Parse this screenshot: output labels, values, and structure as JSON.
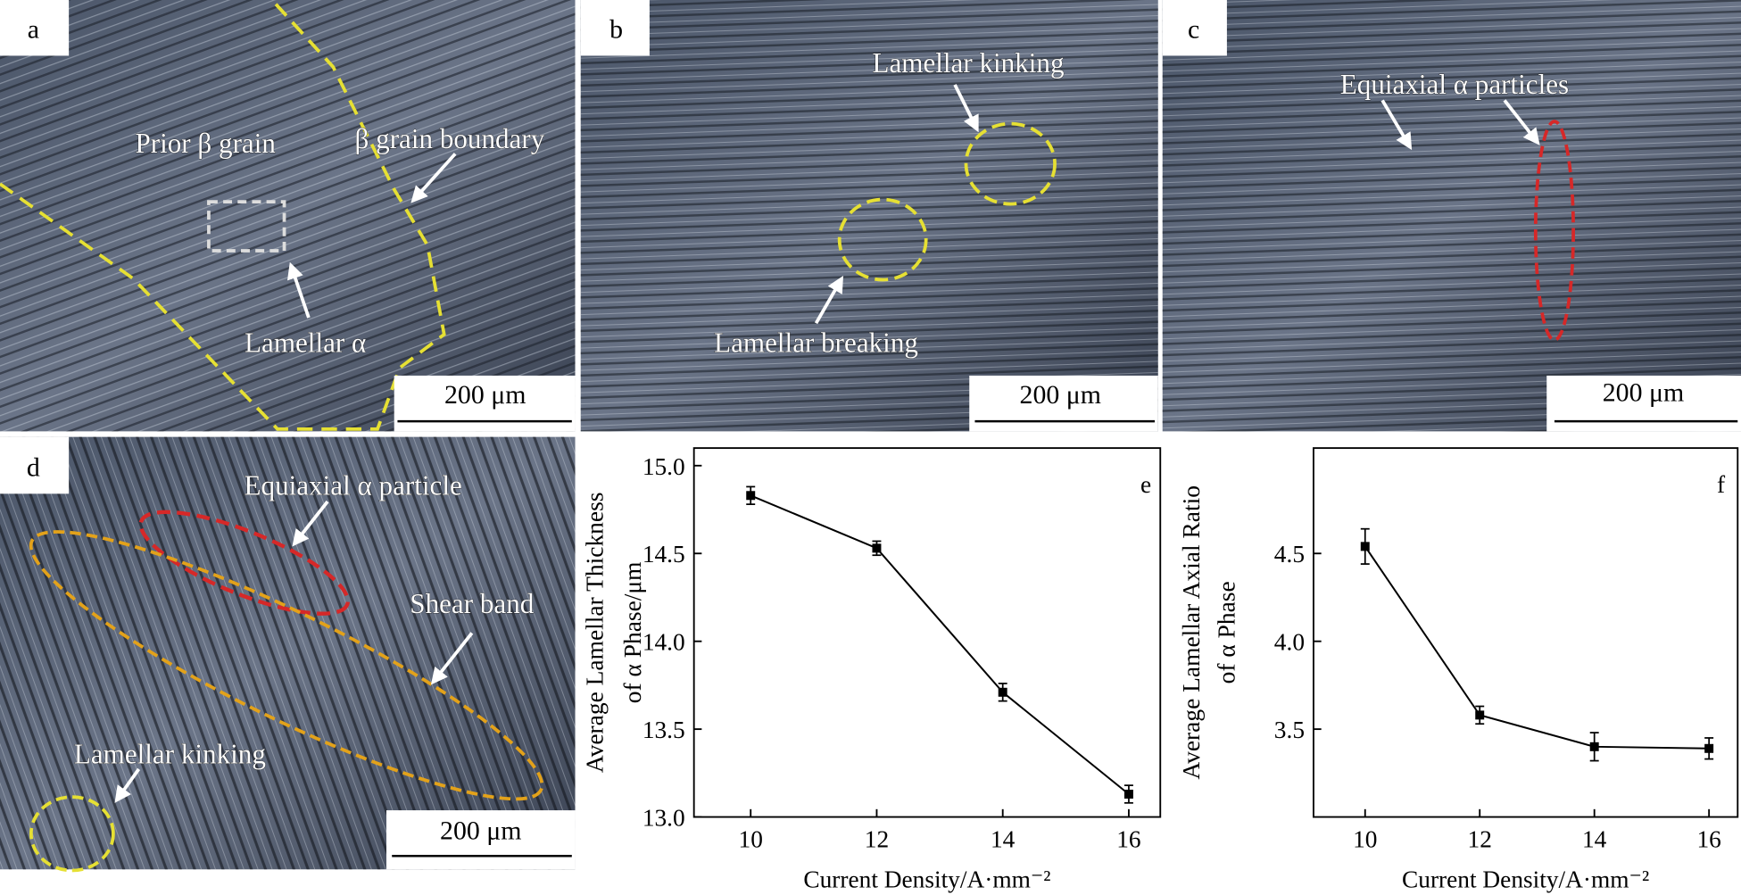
{
  "micrographs": [
    {
      "label": "a",
      "annotations": [
        "Prior β grain",
        "β grain boundary",
        "Lamellar α"
      ],
      "scale_bar": "200 μm"
    },
    {
      "label": "b",
      "annotations": [
        "Lamellar kinking",
        "Lamellar breaking"
      ],
      "scale_bar": "200 μm"
    },
    {
      "label": "c",
      "annotations": [
        "Equiaxial α particles"
      ],
      "scale_bar": "200 μm"
    },
    {
      "label": "d",
      "annotations": [
        "Equiaxial α particle",
        "Shear band",
        "Lamellar kinking"
      ],
      "scale_bar": "200 μm"
    }
  ],
  "chart_data": [
    {
      "type": "line",
      "panel_label": "e",
      "x_label": "Current Density/A·mm⁻²",
      "y_label": [
        "Average Lamellar Thickness",
        "of α Phase/μm"
      ],
      "x": [
        10,
        12,
        14,
        16
      ],
      "series": [
        {
          "color": "#000000",
          "values": [
            14.83,
            14.53,
            13.71,
            13.13
          ],
          "errors": [
            0.05,
            0.04,
            0.05,
            0.05
          ]
        }
      ],
      "xlim": [
        9.1,
        16.5
      ],
      "xticks": [
        10,
        12,
        14,
        16
      ],
      "ylim": [
        13.0,
        15.1
      ],
      "yticks": [
        {
          "value": 13,
          "label": "13.0"
        },
        13.5,
        {
          "value": 14,
          "label": "14.0"
        },
        14.5,
        {
          "value": 15,
          "label": "15.0"
        }
      ]
    },
    {
      "type": "line",
      "panel_label": "f",
      "x_label": "Current Density/A·mm⁻²",
      "y_label": [
        "Average Lamellar Axial Ratio",
        "of α Phase"
      ],
      "x": [
        10,
        12,
        14,
        16
      ],
      "series": [
        {
          "color": "#000000",
          "values": [
            4.54,
            3.58,
            3.4,
            3.39
          ],
          "errors": [
            0.1,
            0.05,
            0.08,
            0.06
          ]
        }
      ],
      "xlim": [
        9.1,
        16.5
      ],
      "xticks": [
        10,
        12,
        14,
        16
      ],
      "ylim": [
        3.0,
        5.1
      ],
      "yticks": [
        3.5,
        {
          "value": 4,
          "label": "4.0"
        },
        4.5
      ]
    }
  ]
}
